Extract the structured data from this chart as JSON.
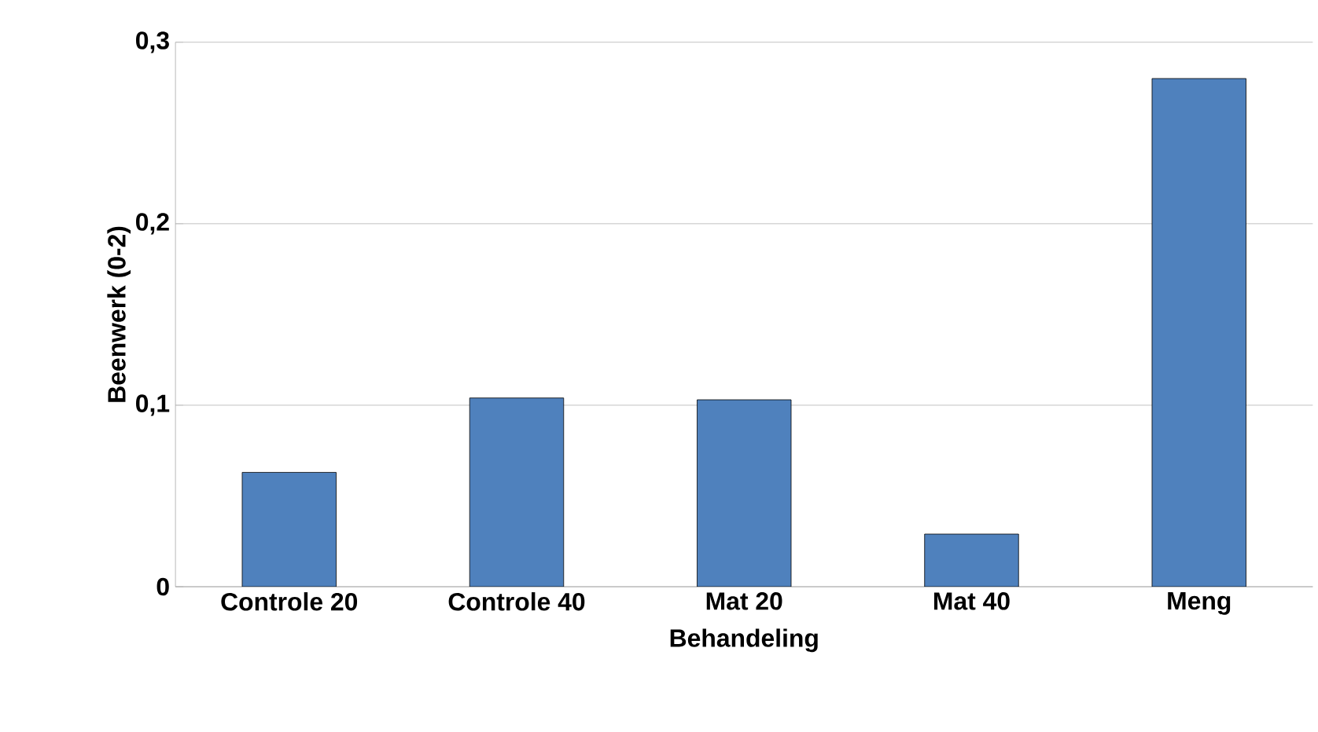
{
  "chart_data": {
    "type": "bar",
    "xlabel": "Behandeling",
    "ylabel": "Beenwerk (0-2)",
    "categories": [
      "Controle 20",
      "Controle 40",
      "Mat 20",
      "Mat 40",
      "Meng"
    ],
    "values": [
      0.063,
      0.104,
      0.103,
      0.029,
      0.28
    ],
    "color": "#4f81bd",
    "ylim": [
      0,
      0.3
    ],
    "yticks": [
      0,
      {
        "value": 0.1,
        "label": "0,1"
      },
      {
        "value": 0.2,
        "label": "0,2"
      },
      {
        "value": 0.3,
        "label": "0,3"
      }
    ],
    "grid": "y"
  }
}
